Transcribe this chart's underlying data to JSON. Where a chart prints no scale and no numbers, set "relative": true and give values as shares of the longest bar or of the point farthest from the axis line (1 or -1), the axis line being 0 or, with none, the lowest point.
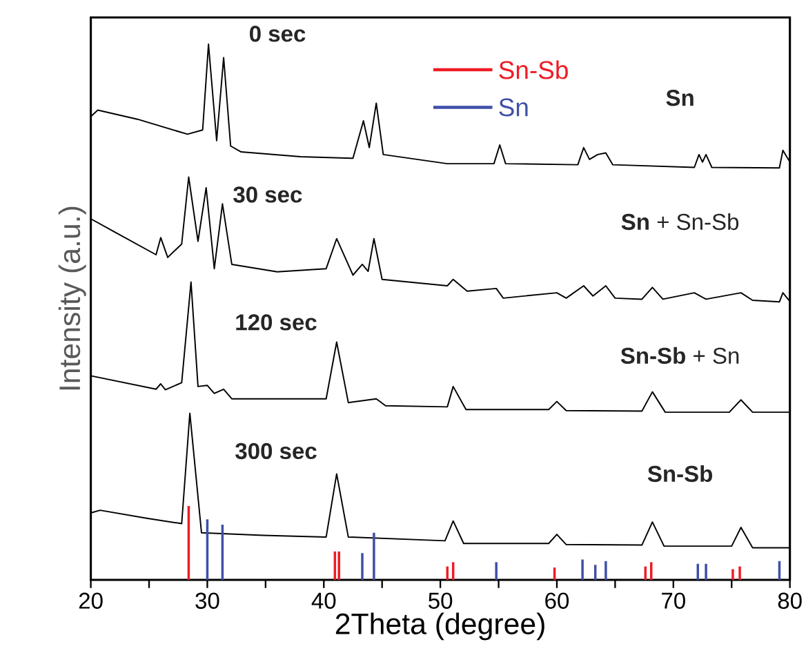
{
  "chart_data": {
    "type": "line",
    "relative": true,
    "xlabel": "2Theta (degree)",
    "ylabel": "Intensity (a.u.)",
    "xlim": [
      20,
      80
    ],
    "xticks": [
      20,
      {
        "value": 25,
        "label": null
      },
      30,
      {
        "value": 35,
        "label": null
      },
      40,
      {
        "value": 45,
        "label": null
      },
      50,
      {
        "value": 55,
        "label": null
      },
      60,
      {
        "value": 65,
        "label": null
      },
      70,
      {
        "value": 75,
        "label": null
      },
      80
    ],
    "legend": "top",
    "series": [
      {
        "name": "0 sec",
        "color": "#000000",
        "x": [
          20,
          20.6,
          24,
          28.3,
          29.6,
          30.1,
          30.8,
          31.4,
          32.0,
          32.9,
          38,
          42.5,
          43.4,
          43.9,
          44.5,
          45.1,
          50.6,
          54.6,
          55.1,
          55.6,
          61.8,
          62.3,
          62.8,
          63.5,
          64.2,
          64.8,
          71.8,
          72.2,
          72.5,
          72.8,
          73.3,
          79.1,
          79.4,
          80
        ],
        "values": [
          0.865,
          0.877,
          0.86,
          0.832,
          0.84,
          1.0,
          0.82,
          0.975,
          0.81,
          0.799,
          0.79,
          0.787,
          0.857,
          0.807,
          0.89,
          0.794,
          0.777,
          0.777,
          0.812,
          0.777,
          0.775,
          0.807,
          0.785,
          0.794,
          0.797,
          0.775,
          0.77,
          0.794,
          0.78,
          0.794,
          0.77,
          0.769,
          0.802,
          0.78
        ]
      },
      {
        "name": "30 sec",
        "color": "#000000",
        "x": [
          20,
          22,
          25.6,
          26.0,
          26.6,
          27.8,
          28.4,
          29.2,
          29.9,
          30.6,
          31.3,
          32.1,
          36,
          40.2,
          41.1,
          42.5,
          43.3,
          43.8,
          44.3,
          45.0,
          50.6,
          51.1,
          52.3,
          54.8,
          55.4,
          60.0,
          60.8,
          62.3,
          63.1,
          64.2,
          65.0,
          67.3,
          68.2,
          69.1,
          71.8,
          72.8,
          75.8,
          76.8,
          79.1,
          79.4,
          80
        ],
        "values": [
          0.674,
          0.65,
          0.607,
          0.639,
          0.602,
          0.627,
          0.752,
          0.632,
          0.732,
          0.581,
          0.702,
          0.589,
          0.575,
          0.581,
          0.637,
          0.569,
          0.589,
          0.576,
          0.637,
          0.561,
          0.549,
          0.561,
          0.539,
          0.544,
          0.526,
          0.536,
          0.526,
          0.549,
          0.53,
          0.549,
          0.526,
          0.524,
          0.546,
          0.524,
          0.536,
          0.524,
          0.536,
          0.522,
          0.519,
          0.536,
          0.52
        ]
      },
      {
        "name": "120 sec",
        "color": "#000000",
        "x": [
          20,
          25.6,
          26.0,
          26.4,
          27.8,
          28.6,
          29.2,
          30.0,
          30.6,
          31.4,
          32.1,
          40.2,
          41.1,
          42.1,
          44.5,
          45.3,
          50.6,
          51.1,
          52.2,
          59.3,
          60.0,
          60.8,
          67.3,
          68.2,
          69.3,
          74.8,
          75.8,
          76.8,
          80
        ],
        "values": [
          0.381,
          0.356,
          0.366,
          0.355,
          0.368,
          0.556,
          0.361,
          0.363,
          0.348,
          0.356,
          0.338,
          0.338,
          0.444,
          0.331,
          0.338,
          0.325,
          0.323,
          0.361,
          0.318,
          0.318,
          0.333,
          0.316,
          0.315,
          0.351,
          0.313,
          0.313,
          0.336,
          0.313,
          0.313
        ]
      },
      {
        "name": "300 sec",
        "color": "#000000",
        "x": [
          20,
          20.8,
          24.8,
          27.8,
          28.5,
          29.5,
          34.8,
          40.2,
          41.1,
          42.1,
          50.4,
          51.1,
          52.0,
          59.3,
          60.0,
          60.8,
          67.3,
          68.2,
          69.2,
          75.0,
          75.8,
          76.8,
          80
        ],
        "values": [
          0.125,
          0.13,
          0.115,
          0.105,
          0.311,
          0.088,
          0.083,
          0.08,
          0.198,
          0.08,
          0.073,
          0.11,
          0.068,
          0.068,
          0.085,
          0.066,
          0.065,
          0.108,
          0.063,
          0.063,
          0.098,
          0.06,
          0.06
        ]
      },
      {
        "type": "bar",
        "name": "Sn-Sb",
        "color": "#ee1c25",
        "x": [
          28.4,
          40.95,
          41.3,
          50.6,
          51.1,
          59.8,
          67.6,
          68.1,
          75.1,
          75.7
        ],
        "values": [
          0.138,
          0.053,
          0.053,
          0.025,
          0.033,
          0.023,
          0.025,
          0.033,
          0.02,
          0.025
        ]
      },
      {
        "type": "bar",
        "name": "Sn",
        "color": "#3f4fa8",
        "x": [
          30.0,
          31.3,
          43.3,
          44.3,
          54.8,
          62.2,
          63.3,
          64.2,
          72.1,
          72.8,
          79.1
        ],
        "values": [
          0.113,
          0.103,
          0.05,
          0.088,
          0.033,
          0.038,
          0.028,
          0.035,
          0.03,
          0.03,
          0.035
        ]
      }
    ],
    "annotations": [
      "**Sn**",
      "**Sn** + Sn-Sb",
      "**Sn-Sb** + Sn",
      "**Sn-Sb**"
    ]
  }
}
